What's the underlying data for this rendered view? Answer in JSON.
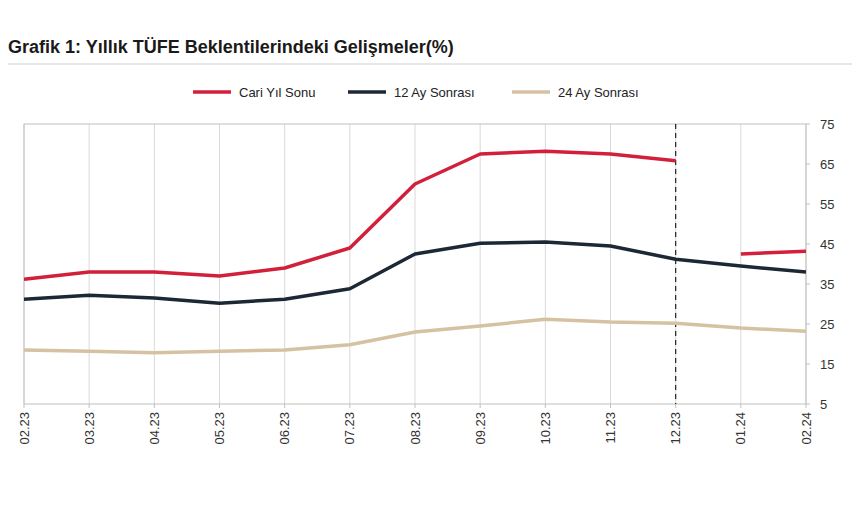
{
  "chart_data": {
    "type": "line",
    "title": "Grafik 1: Yıllık TÜFE Beklentilerindeki Gelişmeler(%)",
    "categories": [
      "02.23",
      "03.23",
      "04.23",
      "05.23",
      "06.23",
      "07.23",
      "08.23",
      "09.23",
      "10.23",
      "11.23",
      "12.23",
      "01.24",
      "02.24"
    ],
    "series": [
      {
        "name": "Cari Yıl Sonu",
        "color": "#d2203b",
        "values": [
          36.2,
          38,
          38,
          37,
          39,
          44,
          60,
          67.5,
          68.2,
          67.5,
          65.8,
          null,
          null
        ]
      },
      {
        "name": "Cari Yıl Sonu",
        "color": "#d2203b",
        "values": [
          null,
          null,
          null,
          null,
          null,
          null,
          null,
          null,
          null,
          null,
          null,
          42.5,
          43.2
        ]
      },
      {
        "name": "12 Ay Sonrası",
        "color": "#1c2836",
        "values": [
          31.2,
          32.2,
          31.5,
          30.2,
          31.2,
          33.8,
          42.5,
          45.2,
          45.5,
          44.5,
          41.2,
          39.5,
          38
        ]
      },
      {
        "name": "24 Ay Sonrası",
        "color": "#d5c2a3",
        "values": [
          18.5,
          18.2,
          17.8,
          18.2,
          18.5,
          19.8,
          23,
          24.5,
          26.2,
          25.5,
          25.2,
          24,
          23.2
        ]
      }
    ],
    "ylim": [
      5,
      75
    ],
    "yticks": [
      5,
      15,
      25,
      35,
      45,
      55,
      65,
      75
    ],
    "grid": true,
    "legend": "top",
    "annotations": [
      {
        "x": "12.23",
        "line_style": "dashed"
      }
    ]
  }
}
